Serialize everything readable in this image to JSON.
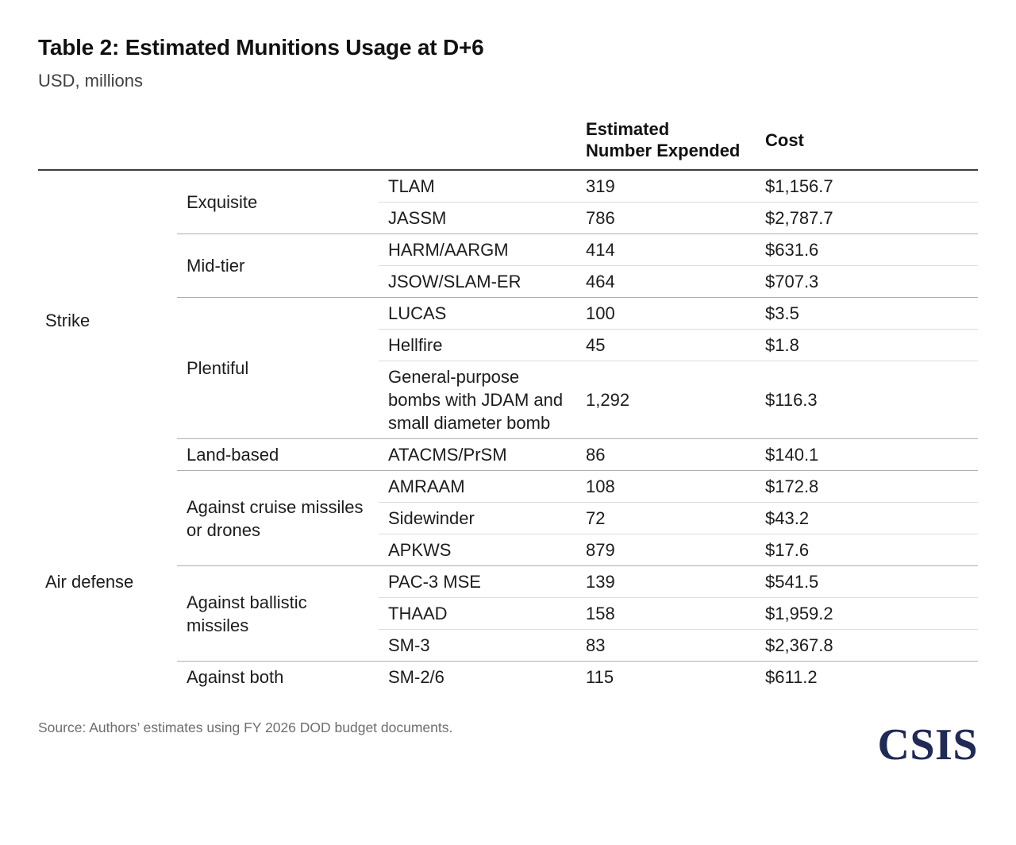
{
  "title": "Table 2: Estimated Munitions Usage at D+6",
  "subtitle": "USD, millions",
  "header": {
    "col_expended": {
      "label": "Estimated Number Expended",
      "lines": [
        "Estimated",
        "Number Expended"
      ]
    },
    "col_cost": "Cost"
  },
  "table": {
    "sections": [
      {
        "label": "Strike",
        "groups": [
          {
            "label": "Exquisite",
            "rows": [
              {
                "name": "TLAM",
                "expended": "319",
                "cost": "$1,156.7"
              },
              {
                "name": "JASSM",
                "expended": "786",
                "cost": "$2,787.7"
              }
            ]
          },
          {
            "label": "Mid-tier",
            "rows": [
              {
                "name": "HARM/AARGM",
                "expended": "414",
                "cost": "$631.6"
              },
              {
                "name": "JSOW/SLAM-ER",
                "expended": "464",
                "cost": "$707.3"
              }
            ]
          },
          {
            "label": "Plentiful",
            "rows": [
              {
                "name": "LUCAS",
                "expended": "100",
                "cost": "$3.5"
              },
              {
                "name": "Hellfire",
                "expended": "45",
                "cost": "$1.8"
              },
              {
                "name": "General-purpose bombs with JDAM and small diameter bomb",
                "expended": "1,292",
                "cost": "$116.3"
              }
            ]
          },
          {
            "label": "Land-based",
            "rows": [
              {
                "name": "ATACMS/PrSM",
                "expended": "86",
                "cost": "$140.1"
              }
            ]
          }
        ]
      },
      {
        "label": "Air defense",
        "groups": [
          {
            "label": "Against cruise missiles or drones",
            "rows": [
              {
                "name": "AMRAAM",
                "expended": "108",
                "cost": "$172.8"
              },
              {
                "name": "Sidewinder",
                "expended": "72",
                "cost": "$43.2"
              },
              {
                "name": "APKWS",
                "expended": "879",
                "cost": "$17.6"
              }
            ]
          },
          {
            "label": "Against ballistic missiles",
            "rows": [
              {
                "name": "PAC-3 MSE",
                "expended": "139",
                "cost": "$541.5"
              },
              {
                "name": "THAAD",
                "expended": "158",
                "cost": "$1,959.2"
              },
              {
                "name": "SM-3",
                "expended": "83",
                "cost": "$2,367.8"
              }
            ]
          },
          {
            "label": "Against both",
            "rows": [
              {
                "name": "SM-2/6",
                "expended": "115",
                "cost": "$611.2"
              }
            ]
          }
        ]
      }
    ]
  },
  "source_note": "Source: Authors’ estimates using FY 2026 DOD budget documents.",
  "logo_text": "CSIS",
  "colors": {
    "logo_navy": "#1f2a56",
    "header_rule": "#3c3c3c",
    "group_divider": "#aeaeae",
    "row_divider": "#dcdcdc",
    "muted_text": "#6e6e6e"
  },
  "chart_data": {
    "type": "table",
    "title": "Table 2: Estimated Munitions Usage at D+6",
    "units": "USD, millions",
    "columns": [
      "Category",
      "Tier",
      "Munition",
      "Estimated Number Expended",
      "Cost"
    ],
    "rows": [
      [
        "Strike",
        "Exquisite",
        "TLAM",
        319,
        1156.7
      ],
      [
        "Strike",
        "Exquisite",
        "JASSM",
        786,
        2787.7
      ],
      [
        "Strike",
        "Mid-tier",
        "HARM/AARGM",
        414,
        631.6
      ],
      [
        "Strike",
        "Mid-tier",
        "JSOW/SLAM-ER",
        464,
        707.3
      ],
      [
        "Strike",
        "Plentiful",
        "LUCAS",
        100,
        3.5
      ],
      [
        "Strike",
        "Plentiful",
        "Hellfire",
        45,
        1.8
      ],
      [
        "Strike",
        "Plentiful",
        "General-purpose bombs with JDAM and small diameter bomb",
        1292,
        116.3
      ],
      [
        "Strike",
        "Land-based",
        "ATACMS/PrSM",
        86,
        140.1
      ],
      [
        "Air defense",
        "Against cruise missiles or drones",
        "AMRAAM",
        108,
        172.8
      ],
      [
        "Air defense",
        "Against cruise missiles or drones",
        "Sidewinder",
        72,
        43.2
      ],
      [
        "Air defense",
        "Against cruise missiles or drones",
        "APKWS",
        879,
        17.6
      ],
      [
        "Air defense",
        "Against ballistic missiles",
        "PAC-3 MSE",
        139,
        541.5
      ],
      [
        "Air defense",
        "Against ballistic missiles",
        "THAAD",
        158,
        1959.2
      ],
      [
        "Air defense",
        "Against ballistic missiles",
        "SM-3",
        83,
        2367.8
      ],
      [
        "Air defense",
        "Against both",
        "SM-2/6",
        115,
        611.2
      ]
    ]
  }
}
